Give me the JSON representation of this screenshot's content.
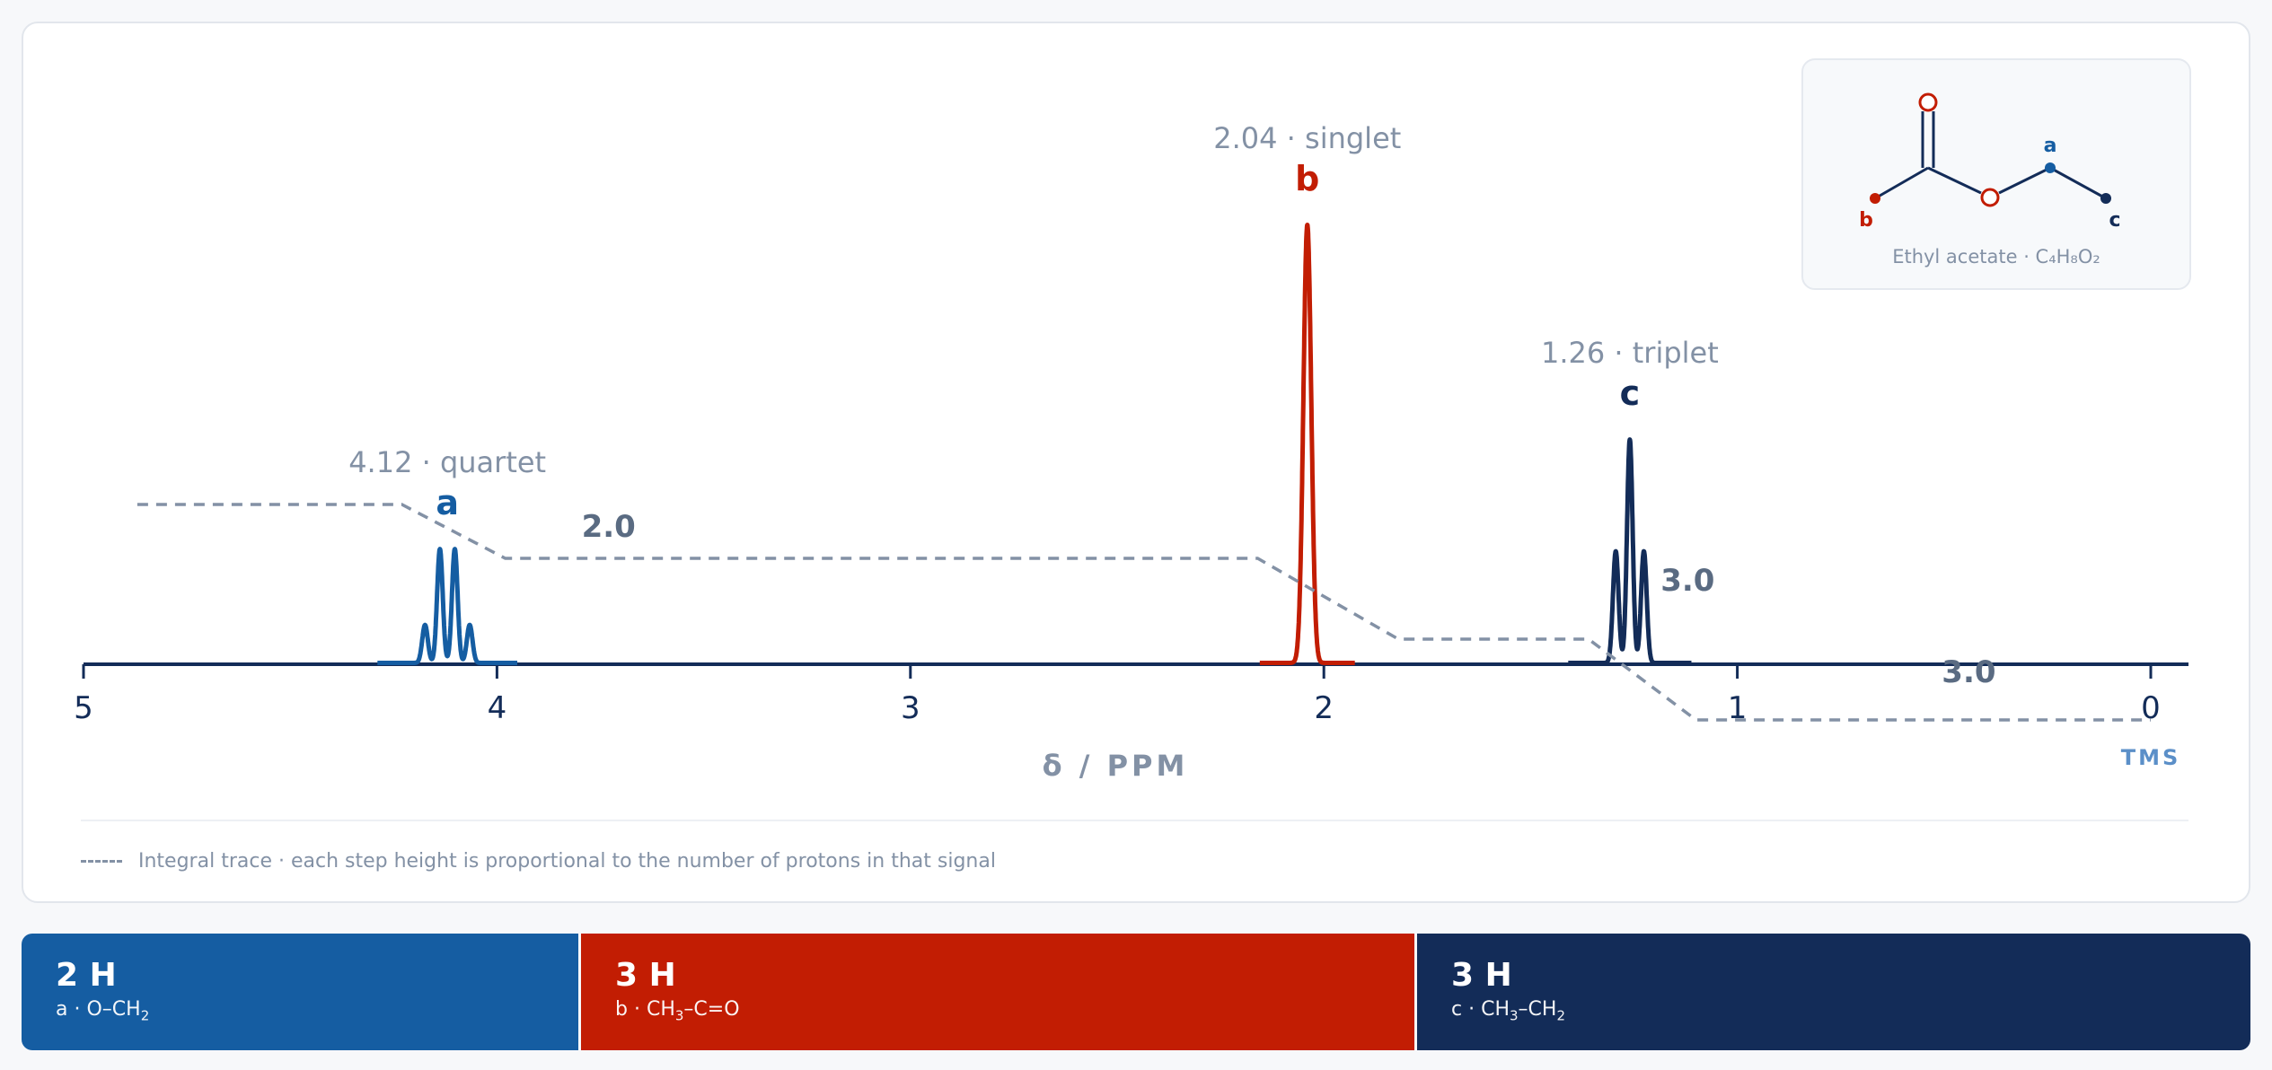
{
  "chart_data": {
    "type": "line",
    "xlabel": "δ / PPM",
    "x_reversed": true,
    "xlim": [
      0,
      5
    ],
    "x_ticks": [
      5,
      4,
      3,
      2,
      1,
      0
    ],
    "tms_label": "TMS",
    "peaks": [
      {
        "label": "a",
        "shift": 4.12,
        "multiplicity": "quartet",
        "caption": "4.12 · quartet",
        "color": "#155da2",
        "lines": 4,
        "j_ppm": 0.036,
        "rel_height": 0.26,
        "integral": "2.0"
      },
      {
        "label": "b",
        "shift": 2.04,
        "multiplicity": "singlet",
        "caption": "2.04 · singlet",
        "color": "#c21d03",
        "lines": 1,
        "j_ppm": 0,
        "rel_height": 1.0,
        "integral": "3.0"
      },
      {
        "label": "c",
        "shift": 1.26,
        "multiplicity": "triplet",
        "caption": "1.26 · triplet",
        "color": "#132c58",
        "lines": 3,
        "j_ppm": 0.034,
        "rel_height": 0.51,
        "integral": "3.0"
      }
    ],
    "integral_trace": {
      "style": "dashed",
      "color": "#8391a5",
      "points": [
        [
          4.87,
          8
        ],
        [
          4.23,
          8
        ],
        [
          3.98,
          5
        ],
        [
          2.16,
          5
        ],
        [
          1.82,
          0.5
        ],
        [
          1.36,
          0.5
        ],
        [
          1.1,
          -4
        ],
        [
          0,
          -4
        ]
      ]
    },
    "legend_note": "Integral trace · each step height is proportional to the number of protons in that signal"
  },
  "molecule": {
    "name": "Ethyl acetate · C₄H₈O₂",
    "atoms": {
      "O": "O",
      "a": "a",
      "b": "b",
      "c": "c"
    }
  },
  "bars": [
    {
      "count": "2 H",
      "label": "a",
      "group": "O–CH",
      "sub": "2",
      "tail": ""
    },
    {
      "count": "3 H",
      "label": "b",
      "group": "CH",
      "sub": "3",
      "tail": "–C=O"
    },
    {
      "count": "3 H",
      "label": "c",
      "group": "CH",
      "sub": "3",
      "tail": "–CH",
      "sub2": "2"
    }
  ],
  "colors": {
    "a": "#155da2",
    "b": "#c21d03",
    "c": "#132c58",
    "axis": "#132c58",
    "muted": "#8391a5"
  }
}
